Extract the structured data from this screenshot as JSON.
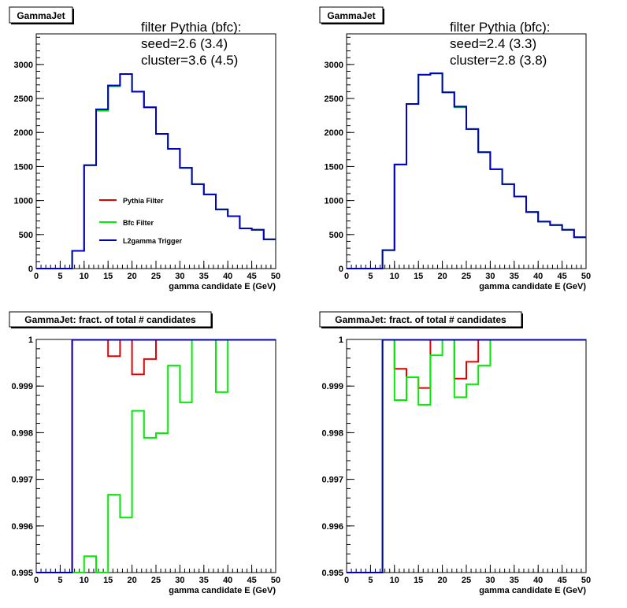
{
  "colors": {
    "pythia": "#e60000",
    "bfc": "#00ee00",
    "l2": "#0000cc",
    "axis": "#000000"
  },
  "chart_data": [
    {
      "type": "line",
      "step": true,
      "title_box": "GammaJet",
      "annotation": [
        "filter Pythia (bfc):",
        "seed=2.6 (3.4)",
        "cluster=3.6 (4.5)"
      ],
      "xlabel": "gamma candidate E (GeV)",
      "ylabel": "",
      "xlim": [
        0,
        50
      ],
      "ylim": [
        0,
        3450
      ],
      "xticks": [
        0,
        5,
        10,
        15,
        20,
        25,
        30,
        35,
        40,
        45,
        50
      ],
      "yticks": [
        0,
        500,
        1000,
        1500,
        2000,
        2500,
        3000
      ],
      "legend_position": "center",
      "legend": [
        "Pythia Filter",
        "Bfc Filter",
        "L2gamma Trigger"
      ],
      "bin_width": 2.5,
      "x": [
        0,
        2.5,
        5,
        7.5,
        10,
        12.5,
        15,
        17.5,
        20,
        22.5,
        25,
        27.5,
        30,
        32.5,
        35,
        37.5,
        40,
        42.5,
        45,
        47.5
      ],
      "series": [
        {
          "name": "Pythia Filter",
          "color_key": "pythia",
          "values": [
            0,
            0,
            0,
            260,
            1520,
            2340,
            2690,
            2860,
            2600,
            2370,
            1980,
            1760,
            1480,
            1240,
            1090,
            870,
            770,
            590,
            570,
            430
          ]
        },
        {
          "name": "Bfc Filter",
          "color_key": "bfc",
          "values": [
            0,
            0,
            0,
            260,
            1520,
            2320,
            2680,
            2860,
            2600,
            2370,
            1980,
            1760,
            1480,
            1240,
            1090,
            870,
            770,
            590,
            570,
            430
          ]
        },
        {
          "name": "L2gamma Trigger",
          "color_key": "l2",
          "values": [
            0,
            0,
            0,
            260,
            1520,
            2340,
            2690,
            2860,
            2600,
            2370,
            1980,
            1760,
            1480,
            1240,
            1090,
            870,
            770,
            590,
            570,
            430
          ]
        }
      ]
    },
    {
      "type": "line",
      "step": true,
      "title_box": "GammaJet",
      "annotation": [
        "filter Pythia (bfc):",
        "seed=2.4 (3.3)",
        "cluster=2.8 (3.8)"
      ],
      "xlabel": "gamma candidate E (GeV)",
      "ylabel": "",
      "xlim": [
        0,
        50
      ],
      "ylim": [
        0,
        3450
      ],
      "xticks": [
        0,
        5,
        10,
        15,
        20,
        25,
        30,
        35,
        40,
        45,
        50
      ],
      "yticks": [
        0,
        500,
        1000,
        1500,
        2000,
        2500,
        3000
      ],
      "legend": [],
      "bin_width": 2.5,
      "x": [
        0,
        2.5,
        5,
        7.5,
        10,
        12.5,
        15,
        17.5,
        20,
        22.5,
        25,
        27.5,
        30,
        32.5,
        35,
        37.5,
        40,
        42.5,
        45,
        47.5
      ],
      "series": [
        {
          "name": "Pythia Filter",
          "color_key": "pythia",
          "values": [
            0,
            0,
            0,
            270,
            1530,
            2420,
            2850,
            2870,
            2590,
            2380,
            2050,
            1710,
            1460,
            1240,
            1060,
            830,
            690,
            640,
            570,
            460
          ]
        },
        {
          "name": "Bfc Filter",
          "color_key": "bfc",
          "values": [
            0,
            0,
            0,
            270,
            1530,
            2420,
            2850,
            2870,
            2590,
            2370,
            2050,
            1710,
            1460,
            1240,
            1060,
            830,
            690,
            640,
            570,
            460
          ]
        },
        {
          "name": "L2gamma Trigger",
          "color_key": "l2",
          "values": [
            0,
            0,
            0,
            270,
            1530,
            2420,
            2850,
            2870,
            2590,
            2380,
            2050,
            1710,
            1460,
            1240,
            1060,
            830,
            690,
            640,
            570,
            460
          ]
        }
      ]
    },
    {
      "type": "line",
      "step": true,
      "title_box": "GammaJet: fract. of total # candidates",
      "annotation": [],
      "xlabel": "gamma candidate E (GeV)",
      "ylabel": "",
      "xlim": [
        0,
        50
      ],
      "ylim": [
        0.995,
        1.0
      ],
      "xticks": [
        0,
        5,
        10,
        15,
        20,
        25,
        30,
        35,
        40,
        45,
        50
      ],
      "yticks": [
        0.995,
        0.996,
        0.997,
        0.998,
        0.999,
        1
      ],
      "legend": [],
      "bin_width": 2.5,
      "x": [
        0,
        2.5,
        5,
        7.5,
        10,
        12.5,
        15,
        17.5,
        20,
        22.5,
        25,
        27.5,
        30,
        32.5,
        35,
        37.5,
        40,
        42.5,
        45,
        47.5
      ],
      "series": [
        {
          "name": "Pythia Filter",
          "color_key": "pythia",
          "values": [
            0.995,
            0.995,
            0.995,
            1.0,
            1.0,
            1.0,
            0.99964,
            1.0,
            0.99925,
            0.99958,
            1.0,
            1.0,
            1.0,
            1.0,
            1.0,
            1.0,
            1.0,
            1.0,
            1.0,
            1.0
          ]
        },
        {
          "name": "Bfc Filter",
          "color_key": "bfc",
          "values": [
            0.995,
            0.995,
            0.995,
            0.995,
            0.99535,
            0.995,
            0.99667,
            0.99618,
            0.99847,
            0.99789,
            0.99799,
            0.99944,
            0.99865,
            1.0,
            1.0,
            0.99887,
            1.0,
            1.0,
            1.0,
            1.0
          ]
        },
        {
          "name": "L2gamma Trigger",
          "color_key": "l2",
          "values": [
            0.995,
            0.995,
            0.995,
            1.0,
            1.0,
            1.0,
            1.0,
            1.0,
            1.0,
            1.0,
            1.0,
            1.0,
            1.0,
            1.0,
            1.0,
            1.0,
            1.0,
            1.0,
            1.0,
            1.0
          ]
        }
      ]
    },
    {
      "type": "line",
      "step": true,
      "title_box": "GammaJet: fract. of total # candidates",
      "annotation": [],
      "xlabel": "gamma candidate E (GeV)",
      "ylabel": "",
      "xlim": [
        0,
        50
      ],
      "ylim": [
        0.995,
        1.0
      ],
      "xticks": [
        0,
        5,
        10,
        15,
        20,
        25,
        30,
        35,
        40,
        45,
        50
      ],
      "yticks": [
        0.995,
        0.996,
        0.997,
        0.998,
        0.999,
        1
      ],
      "legend": [],
      "bin_width": 2.5,
      "x": [
        0,
        2.5,
        5,
        7.5,
        10,
        12.5,
        15,
        17.5,
        20,
        22.5,
        25,
        27.5,
        30,
        32.5,
        35,
        37.5,
        40,
        42.5,
        45,
        47.5
      ],
      "series": [
        {
          "name": "Pythia Filter",
          "color_key": "pythia",
          "values": [
            0.995,
            0.995,
            0.995,
            1.0,
            0.99937,
            0.99919,
            0.99896,
            1.0,
            1.0,
            0.99916,
            0.99952,
            1.0,
            1.0,
            1.0,
            1.0,
            1.0,
            1.0,
            1.0,
            1.0,
            1.0
          ]
        },
        {
          "name": "Bfc Filter",
          "color_key": "bfc",
          "values": [
            0.995,
            0.995,
            0.995,
            1.0,
            0.9987,
            0.99919,
            0.9986,
            0.99966,
            1.0,
            0.99876,
            0.99904,
            0.99944,
            1.0,
            1.0,
            1.0,
            1.0,
            1.0,
            1.0,
            1.0,
            1.0
          ]
        },
        {
          "name": "L2gamma Trigger",
          "color_key": "l2",
          "values": [
            0.995,
            0.995,
            0.995,
            1.0,
            1.0,
            1.0,
            1.0,
            1.0,
            1.0,
            1.0,
            1.0,
            1.0,
            1.0,
            1.0,
            1.0,
            1.0,
            1.0,
            1.0,
            1.0,
            1.0
          ]
        }
      ]
    }
  ]
}
